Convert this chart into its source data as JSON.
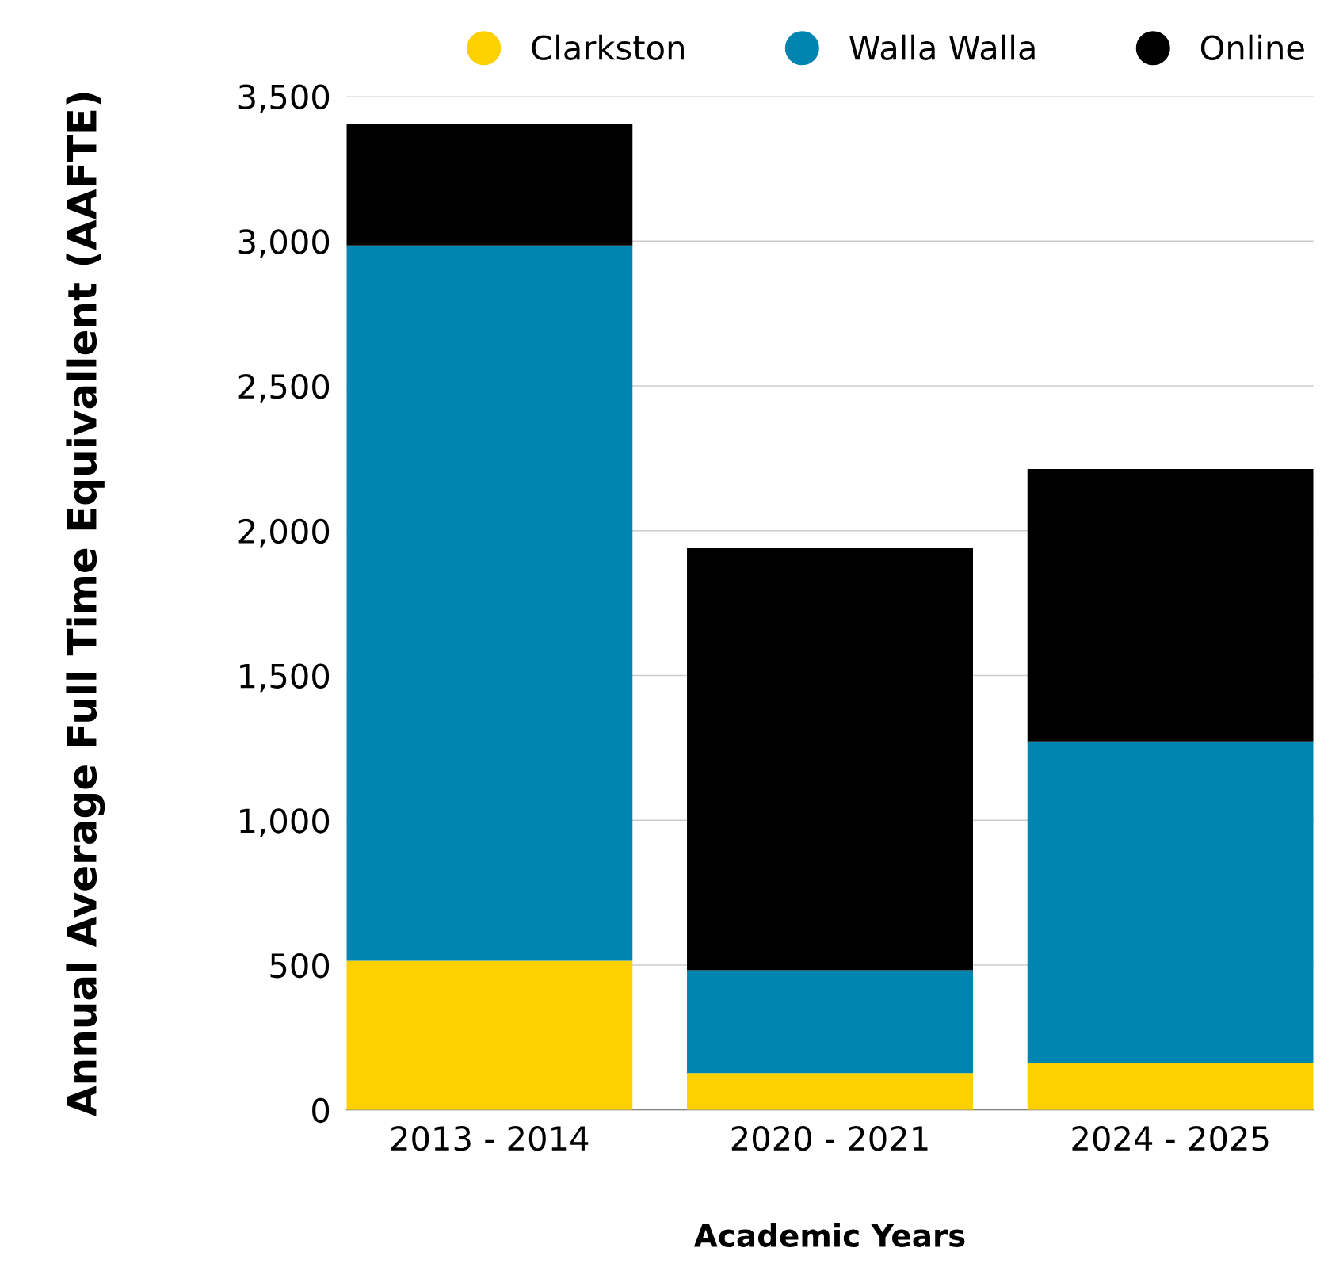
{
  "chart_data": {
    "type": "bar",
    "stacked": true,
    "xlabel": "Academic Years",
    "ylabel": "Annual Average Full Time Equivallent (AAFTE)",
    "categories": [
      "2013 - 2014",
      "2020 - 2021",
      "2024 - 2025"
    ],
    "series": [
      {
        "name": "Clarkston",
        "color": "#fdd000",
        "values": [
          515,
          127,
          163
        ]
      },
      {
        "name": "Walla Walla",
        "color": "#0085b0",
        "values": [
          2470,
          355,
          1109
        ]
      },
      {
        "name": "Online",
        "color": "#000000",
        "values": [
          420,
          1459,
          941
        ]
      }
    ],
    "ylim": [
      0,
      3500
    ],
    "yticks": [
      0,
      {
        "value": 500,
        "label": "500"
      },
      {
        "value": 1000,
        "label": "1,000"
      },
      {
        "value": 1500,
        "label": "1,500"
      },
      {
        "value": 2000,
        "label": "2,000"
      },
      {
        "value": 2500,
        "label": "2,500"
      },
      {
        "value": 3000,
        "label": "3,000"
      },
      {
        "value": 3500,
        "label": "3,500"
      }
    ],
    "grid": "y",
    "legend": "top"
  }
}
